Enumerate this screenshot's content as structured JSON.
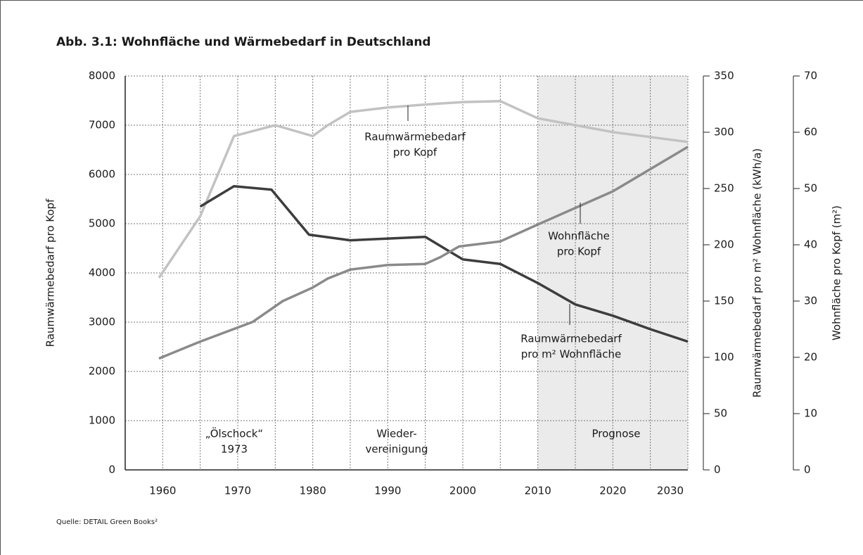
{
  "chart_data": {
    "type": "line",
    "title": "Abb. 3.1: Wohnfläche und Wärmebedarf in Deutschland",
    "source": "Quelle: DETAIL Green Books²",
    "ylabel": "Raumwärmebedarf pro Kopf",
    "y2label": "Raumwärmebedarf pro m² Wohnfläche (kWh/a)",
    "y3label": "Wohnfläche pro Kopf (m²)",
    "xlim": [
      1955,
      2030
    ],
    "xticks": [
      1960,
      1970,
      1980,
      1990,
      2000,
      2010,
      2020,
      2030
    ],
    "ylim": [
      0,
      8000
    ],
    "yticks": [
      0,
      1000,
      2000,
      3000,
      4000,
      5000,
      6000,
      7000,
      8000
    ],
    "y2lim": [
      0,
      350
    ],
    "y2ticks": [
      0,
      50,
      100,
      150,
      200,
      250,
      300,
      350
    ],
    "y3lim": [
      0,
      70
    ],
    "y3ticks": [
      0,
      10,
      20,
      30,
      40,
      50,
      60,
      70
    ],
    "grid": true,
    "shaded_range": [
      2010,
      2030
    ],
    "shade_color": "#ebebeb",
    "series": [
      {
        "name": "Raumwärmebedarf pro Kopf",
        "color": "#c2c2c2",
        "axis": "y",
        "x": [
          1959.5,
          1965,
          1969.5,
          1975,
          1980,
          1982,
          1985,
          1990,
          1995,
          2000,
          2005,
          2010,
          2015,
          2020,
          2025,
          2030
        ],
        "values": [
          3900,
          5150,
          6780,
          7000,
          6780,
          7000,
          7270,
          7360,
          7420,
          7470,
          7490,
          7140,
          7000,
          6860,
          6760,
          6660
        ]
      },
      {
        "name": "Raumwärmebedarf pro m² Wohnfläche",
        "color": "#3d3d3d",
        "axis": "y2",
        "x": [
          1965,
          1969.5,
          1974.5,
          1979.5,
          1985,
          1995,
          2000,
          2005,
          2010,
          2015,
          2020,
          2025,
          2030
        ],
        "values": [
          234,
          252,
          249,
          209,
          204,
          207,
          187,
          183,
          166,
          147,
          137,
          125,
          114
        ]
      },
      {
        "name": "Wohnfläche pro Kopf",
        "color": "#8a8a8a",
        "axis": "y3",
        "x": [
          1959.5,
          1965,
          1972,
          1976,
          1980,
          1982,
          1985,
          1990,
          1995,
          1997,
          1999.5,
          2005,
          2010,
          2020,
          2030
        ],
        "values": [
          19.8,
          22.8,
          26.3,
          30,
          32.4,
          34,
          35.6,
          36.4,
          36.6,
          37.8,
          39.7,
          40.6,
          43.6,
          49.5,
          57.4
        ]
      }
    ],
    "annotations": [
      {
        "lines": [
          "Raumwärmebedarf",
          "pro Kopf"
        ]
      },
      {
        "lines": [
          "Wohnfläche",
          "pro Kopf"
        ]
      },
      {
        "lines": [
          "Raumwärmebedarf",
          "pro m² Wohnfläche"
        ]
      },
      {
        "lines": [
          "„Ölschock“",
          "1973"
        ]
      },
      {
        "lines": [
          "Wieder-",
          "vereinigung"
        ]
      },
      {
        "lines": [
          "Prognose"
        ]
      }
    ]
  }
}
